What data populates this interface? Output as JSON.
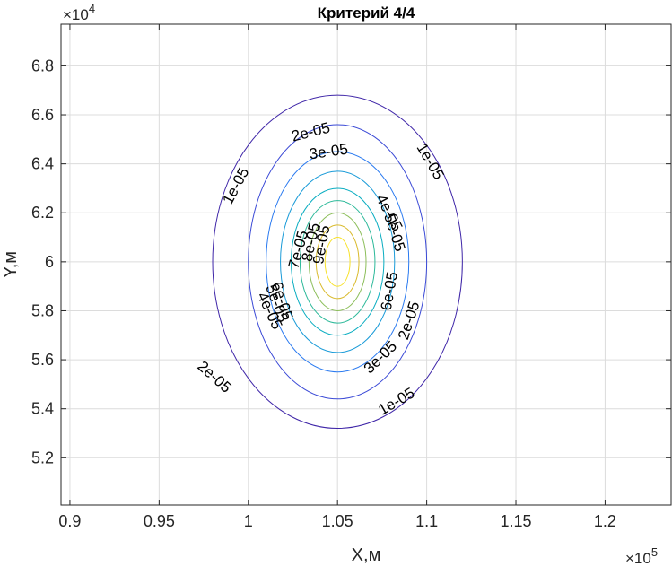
{
  "chart_data": {
    "type": "contour",
    "title": "Критерий  4/4",
    "xlabel": "X,м",
    "ylabel": "Y,м",
    "x_exponent_label": "×10",
    "x_exponent_power": "5",
    "y_exponent_label": "×10",
    "y_exponent_power": "4",
    "xlim": [
      0.895,
      1.237
    ],
    "ylim": [
      5.007,
      6.97
    ],
    "x_ticks": [
      0.9,
      0.95,
      1.0,
      1.05,
      1.1,
      1.15,
      1.2
    ],
    "x_tick_labels": [
      "0.9",
      "0.95",
      "1",
      "1.05",
      "1.1",
      "1.15",
      "1.2"
    ],
    "y_ticks": [
      5.2,
      5.4,
      5.6,
      5.8,
      6.0,
      6.2,
      6.4,
      6.6,
      6.8
    ],
    "y_tick_labels": [
      "5.2",
      "5.4",
      "5.6",
      "5.8",
      "6",
      "6.2",
      "6.4",
      "6.6",
      "6.8"
    ],
    "grid": true,
    "center": {
      "x": 1.05,
      "y": 6.0
    },
    "levels": [
      {
        "value": "1e-05",
        "rx": 0.07,
        "ry": 0.68,
        "color": "#3f26a8"
      },
      {
        "value": "2e-05",
        "rx": 0.05,
        "ry": 0.56,
        "color": "#3a49d6"
      },
      {
        "value": "3e-05",
        "rx": 0.04,
        "ry": 0.45,
        "color": "#2a7af0"
      },
      {
        "value": "4e-05",
        "rx": 0.032,
        "ry": 0.37,
        "color": "#1a9bd8"
      },
      {
        "value": "5e-05",
        "rx": 0.026,
        "ry": 0.3,
        "color": "#0aadc1"
      },
      {
        "value": "6e-05",
        "rx": 0.021,
        "ry": 0.25,
        "color": "#2db99a"
      },
      {
        "value": "7e-05",
        "rx": 0.016,
        "ry": 0.2,
        "color": "#8cbe5a"
      },
      {
        "value": "8e-05",
        "rx": 0.012,
        "ry": 0.15,
        "color": "#d9ba2c"
      },
      {
        "value": "9e-05",
        "rx": 0.007,
        "ry": 0.1,
        "color": "#f7e12a"
      }
    ],
    "contour_labels": [
      {
        "text": "1e-05",
        "x": 0.993,
        "y": 6.31,
        "angle": -62
      },
      {
        "text": "1e-05",
        "x": 1.102,
        "y": 6.41,
        "angle": 60
      },
      {
        "text": "1e-05",
        "x": 1.083,
        "y": 5.43,
        "angle": -30
      },
      {
        "text": "2e-05",
        "x": 1.035,
        "y": 6.53,
        "angle": -14
      },
      {
        "text": "2e-05",
        "x": 0.981,
        "y": 5.53,
        "angle": 42
      },
      {
        "text": "2e-05",
        "x": 1.09,
        "y": 5.76,
        "angle": -72
      },
      {
        "text": "3e-05",
        "x": 1.045,
        "y": 6.45,
        "angle": -8
      },
      {
        "text": "3e-05",
        "x": 1.074,
        "y": 5.61,
        "angle": -44
      },
      {
        "text": "4e-05",
        "x": 1.079,
        "y": 6.2,
        "angle": 62
      },
      {
        "text": "4e-05",
        "x": 1.012,
        "y": 5.8,
        "angle": 65
      },
      {
        "text": "5e-05",
        "x": 1.082,
        "y": 6.12,
        "angle": 72
      },
      {
        "text": "5e-05",
        "x": 1.016,
        "y": 5.83,
        "angle": 70
      },
      {
        "text": "6e-05",
        "x": 1.079,
        "y": 5.88,
        "angle": -80
      },
      {
        "text": "6e-05",
        "x": 1.019,
        "y": 5.84,
        "angle": 72
      },
      {
        "text": "7e-05",
        "x": 1.028,
        "y": 6.05,
        "angle": -75
      },
      {
        "text": "8e-05",
        "x": 1.035,
        "y": 6.08,
        "angle": -78
      },
      {
        "text": "9e-05",
        "x": 1.041,
        "y": 6.07,
        "angle": -80
      }
    ]
  }
}
